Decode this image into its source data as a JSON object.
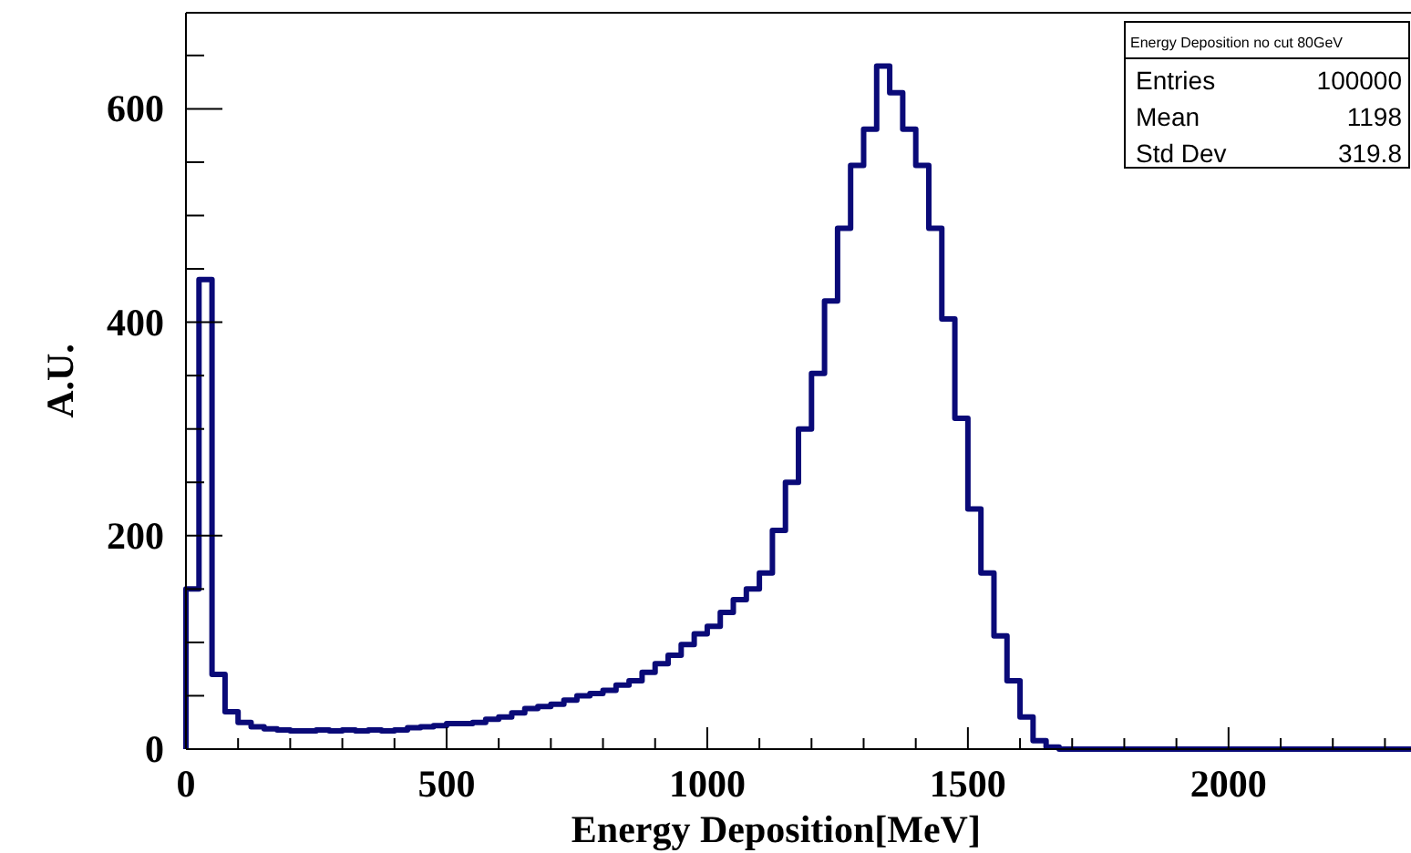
{
  "chart_data": {
    "type": "histogram",
    "title": "Energy Deposition no cut 80GeV",
    "xlabel": "Energy Deposition[MeV]",
    "ylabel": "A.U.",
    "annotations": [
      "Entries 100000",
      "Mean 1198",
      "Std Dev 319.8"
    ],
    "color": "#0a0a78",
    "bins": [
      0,
      25,
      50,
      75,
      100,
      125,
      150,
      175,
      200,
      225,
      250,
      275,
      300,
      325,
      350,
      375,
      400,
      425,
      450,
      475,
      500,
      525,
      550,
      575,
      600,
      625,
      650,
      675,
      700,
      725,
      750,
      775,
      800,
      825,
      850,
      875,
      900,
      925,
      950,
      975,
      1000,
      1025,
      1050,
      1075,
      1100,
      1125,
      1150,
      1175,
      1200,
      1225,
      1250,
      1275,
      1300,
      1325,
      1350,
      1375,
      1400,
      1425,
      1450,
      1475,
      1500,
      1525,
      1550,
      1575,
      1600,
      1625,
      1650,
      1675,
      1700,
      1725,
      1750,
      1775,
      1800,
      1825,
      1850,
      1875,
      1900,
      1925,
      1950,
      1975,
      2000,
      2025,
      2050,
      2075,
      2100,
      2125,
      2150,
      2175,
      2200,
      2225,
      2250,
      2275,
      2300,
      2325,
      2350
    ],
    "values": [
      150,
      440,
      70,
      35,
      25,
      21,
      19,
      18,
      17,
      17,
      18,
      17,
      18,
      17,
      18,
      17,
      18,
      20,
      21,
      22,
      24,
      24,
      25,
      28,
      30,
      34,
      38,
      40,
      42,
      46,
      50,
      52,
      55,
      60,
      64,
      72,
      80,
      88,
      98,
      108,
      115,
      128,
      140,
      150,
      165,
      205,
      250,
      300,
      352,
      420,
      488,
      547,
      581,
      640,
      615,
      581,
      547,
      488,
      403,
      310,
      225,
      165,
      106,
      64,
      30,
      8,
      2,
      0,
      0,
      0,
      0,
      0,
      0,
      0,
      0,
      0,
      0,
      0,
      0,
      0,
      0,
      0,
      0,
      0,
      0,
      0,
      0,
      0,
      0,
      0,
      0,
      0,
      0,
      0
    ],
    "xlim": [
      0,
      2350
    ],
    "ylim": [
      0,
      690
    ],
    "xticks": [
      0,
      {
        "value": 100,
        "label": null
      },
      {
        "value": 200,
        "label": null
      },
      {
        "value": 300,
        "label": null
      },
      {
        "value": 400,
        "label": null
      },
      500,
      {
        "value": 600,
        "label": null
      },
      {
        "value": 700,
        "label": null
      },
      {
        "value": 800,
        "label": null
      },
      {
        "value": 900,
        "label": null
      },
      1000,
      {
        "value": 1100,
        "label": null
      },
      {
        "value": 1200,
        "label": null
      },
      {
        "value": 1300,
        "label": null
      },
      {
        "value": 1400,
        "label": null
      },
      1500,
      {
        "value": 1600,
        "label": null
      },
      {
        "value": 1700,
        "label": null
      },
      {
        "value": 1800,
        "label": null
      },
      {
        "value": 1900,
        "label": null
      },
      2000,
      {
        "value": 2100,
        "label": null
      },
      {
        "value": 2200,
        "label": null
      },
      {
        "value": 2300,
        "label": null
      }
    ],
    "yticks": [
      0,
      {
        "value": 50,
        "label": null
      },
      {
        "value": 100,
        "label": null
      },
      {
        "value": 150,
        "label": null
      },
      200,
      {
        "value": 250,
        "label": null
      },
      {
        "value": 300,
        "label": null
      },
      {
        "value": 350,
        "label": null
      },
      400,
      {
        "value": 450,
        "label": null
      },
      {
        "value": 500,
        "label": null
      },
      {
        "value": 550,
        "label": null
      },
      600,
      {
        "value": 650,
        "label": null
      }
    ],
    "grid": false
  }
}
